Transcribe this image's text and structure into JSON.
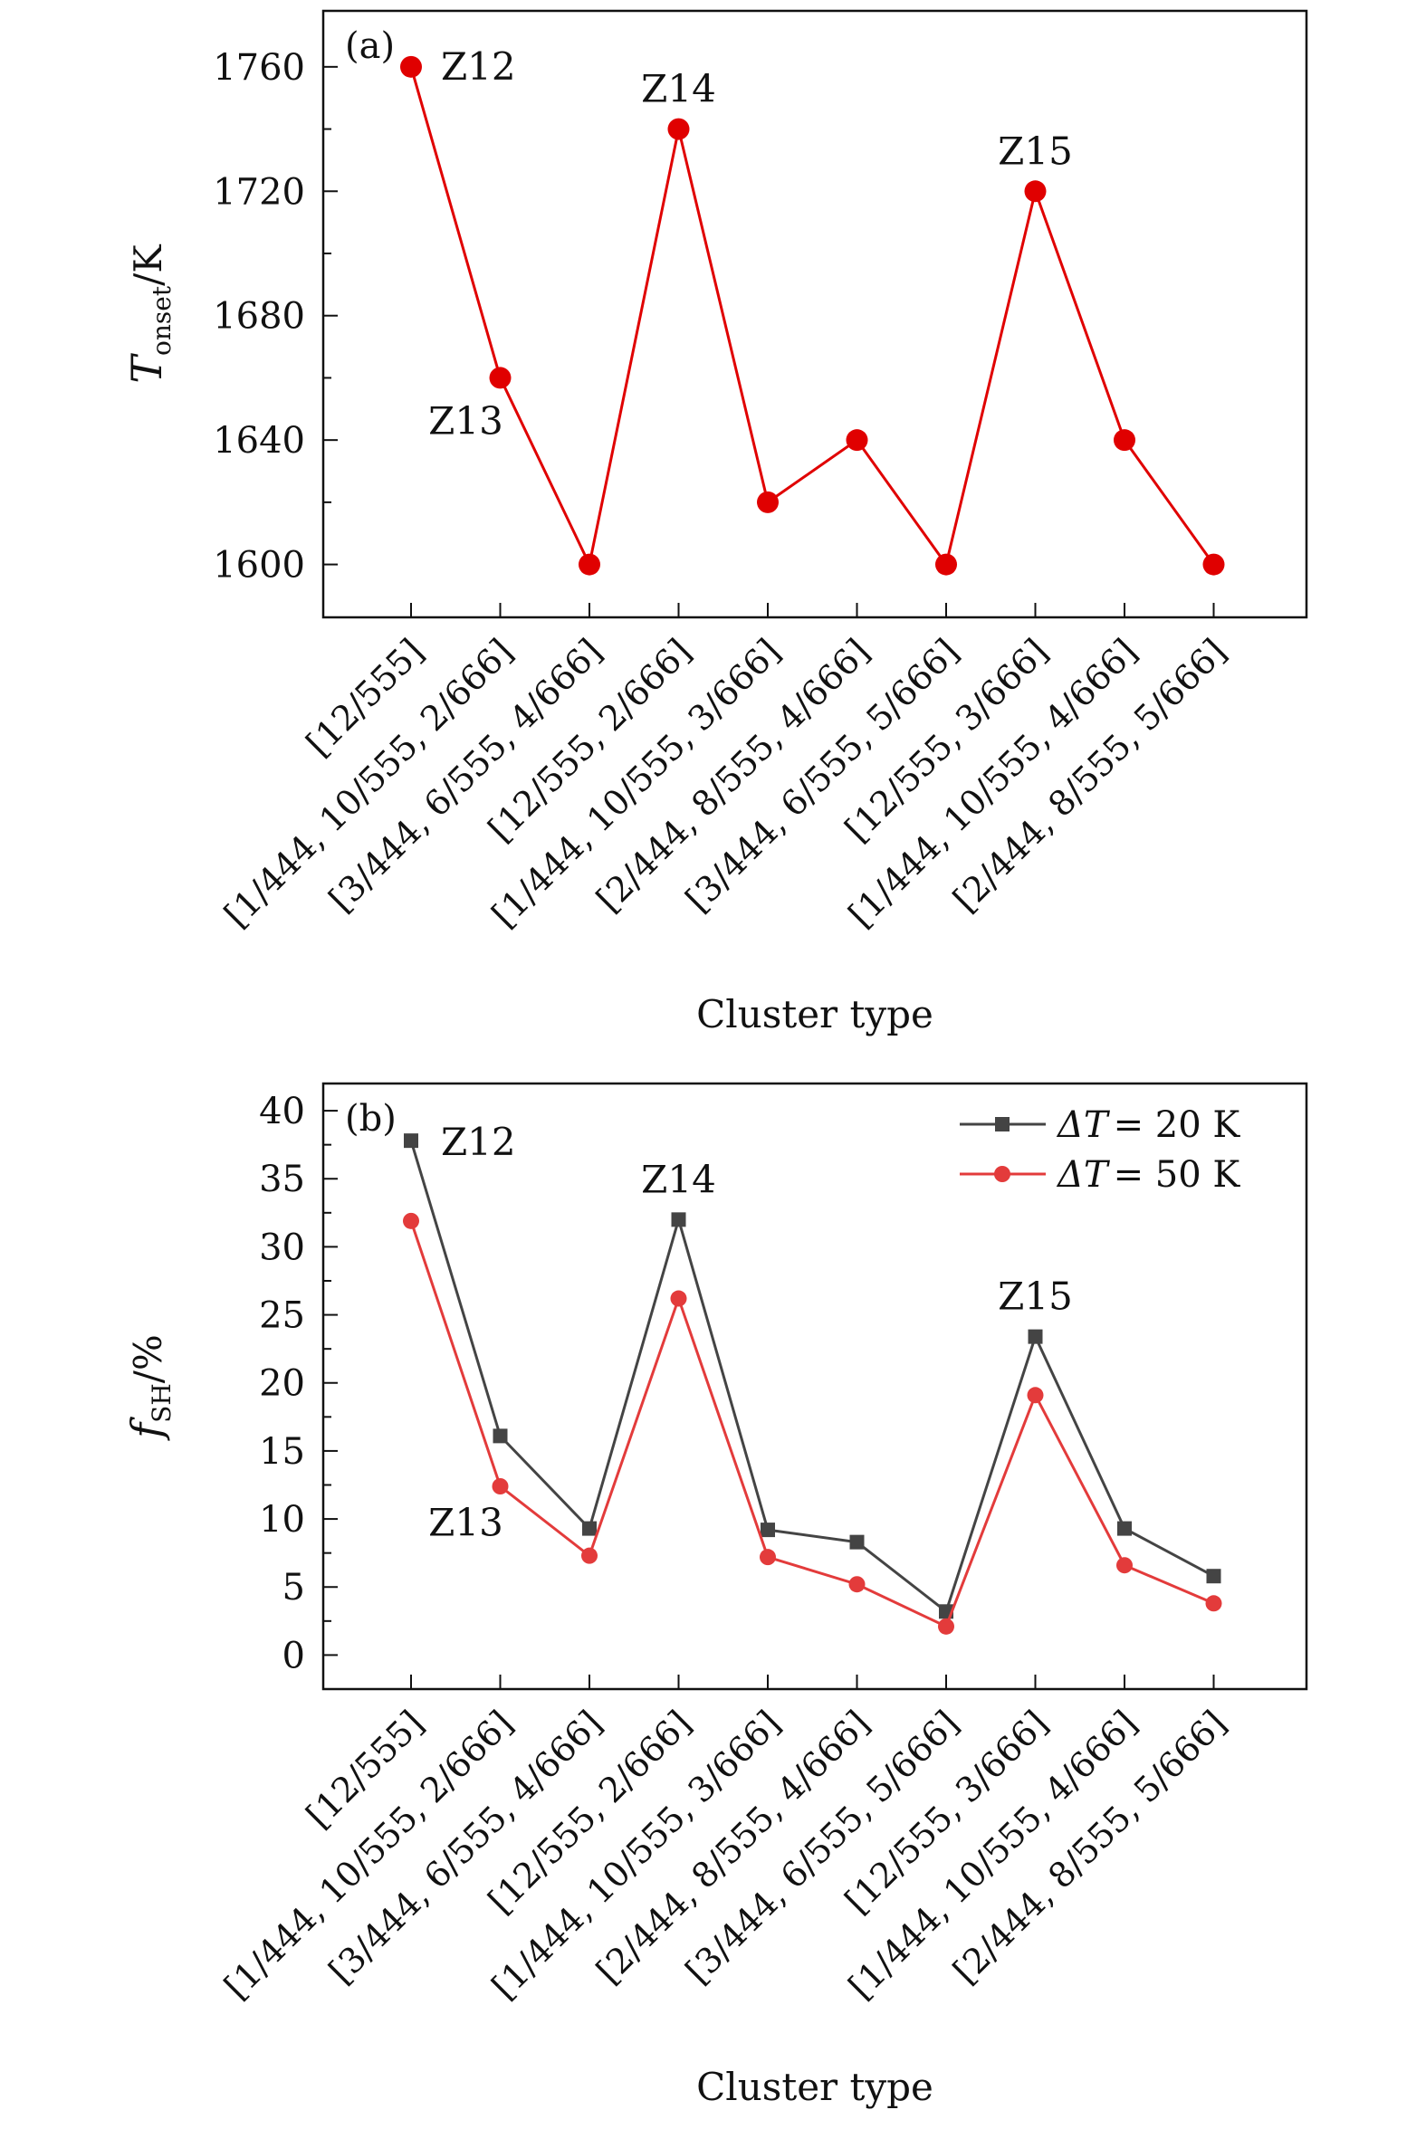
{
  "chart_data": [
    {
      "type": "line",
      "panel_label": "(a)",
      "xlabel": "Cluster type",
      "ylabel_main": "T",
      "ylabel_sub": "onset",
      "ylabel_unit": "/K",
      "ylim": [
        1583,
        1778
      ],
      "yticks": [
        1600,
        1640,
        1680,
        1720,
        1760
      ],
      "grid": false,
      "categories": [
        "[12/555]",
        "[1/444, 10/555, 2/666]",
        "[3/444, 6/555, 4/666]",
        "[12/555, 2/666]",
        "[1/444, 10/555, 3/666]",
        "[2/444, 8/555, 4/666]",
        "[3/444, 6/555, 5/666]",
        "[12/555, 3/666]",
        "[1/444, 10/555, 4/666]",
        "[2/444, 8/555, 5/666]"
      ],
      "series": [
        {
          "values": [
            1760,
            1660,
            1600,
            1740,
            1620,
            1640,
            1600,
            1720,
            1640,
            1600
          ],
          "color": "#e00000",
          "marker": "circle"
        }
      ],
      "annotations": [
        {
          "text": "Z12",
          "index": 0
        },
        {
          "text": "Z13",
          "index": 1
        },
        {
          "text": "Z14",
          "index": 3
        },
        {
          "text": "Z15",
          "index": 7
        }
      ]
    },
    {
      "type": "line",
      "panel_label": "(b)",
      "xlabel": "Cluster type",
      "ylabel_main": "f",
      "ylabel_sub": "SH",
      "ylabel_unit": "/%",
      "ylim": [
        -2.5,
        42
      ],
      "yticks": [
        0,
        5,
        10,
        15,
        20,
        25,
        30,
        35,
        40
      ],
      "grid": false,
      "legend_position": "top-right",
      "categories": [
        "[12/555]",
        "[1/444, 10/555, 2/666]",
        "[3/444, 6/555, 4/666]",
        "[12/555, 2/666]",
        "[1/444, 10/555, 3/666]",
        "[2/444, 8/555, 4/666]",
        "[3/444, 6/555, 5/666]",
        "[12/555, 3/666]",
        "[1/444, 10/555, 4/666]",
        "[2/444, 8/555, 5/666]"
      ],
      "series": [
        {
          "name_symbol": "ΔT",
          "name_value": "= 20 K",
          "values": [
            37.8,
            16.1,
            9.3,
            32.0,
            9.2,
            8.3,
            3.2,
            23.4,
            9.3,
            5.8
          ],
          "color": "#444444",
          "marker": "square"
        },
        {
          "name_symbol": "ΔT",
          "name_value": "= 50 K",
          "values": [
            31.9,
            12.4,
            7.3,
            26.2,
            7.2,
            5.2,
            2.1,
            19.1,
            6.6,
            3.8
          ],
          "color": "#e33b3b",
          "marker": "circle"
        }
      ],
      "annotations": [
        {
          "text": "Z12",
          "index": 0
        },
        {
          "text": "Z13",
          "index": 1
        },
        {
          "text": "Z14",
          "index": 3
        },
        {
          "text": "Z15",
          "index": 7
        }
      ]
    }
  ]
}
